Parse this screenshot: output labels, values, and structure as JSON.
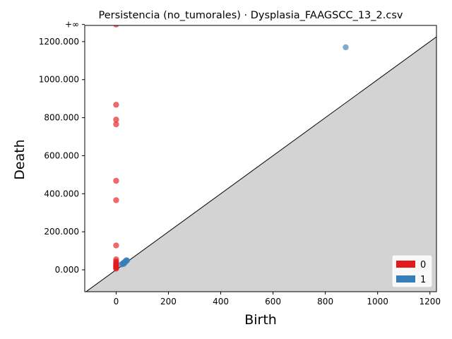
{
  "chart_data": {
    "type": "scatter",
    "title": "Persistencia (no_tumorales) · Dysplasia_FAAGSCC_13_2.csv",
    "xlabel": "Birth",
    "ylabel": "Death",
    "xlim": [
      -120,
      1225
    ],
    "ylim": [
      -115,
      1285
    ],
    "infinity_label": "+∞",
    "infinity_value": 1290,
    "x_ticks": [
      "0",
      "200",
      "400",
      "600",
      "800",
      "1000",
      "1200"
    ],
    "x_tick_values": [
      0,
      200,
      400,
      600,
      800,
      1000,
      1200
    ],
    "y_ticks": [
      "0.000",
      "200.000",
      "400.000",
      "600.000",
      "800.000",
      "1000.000",
      "1200.000"
    ],
    "y_tick_values": [
      0,
      200,
      400,
      600,
      800,
      1000,
      1200
    ],
    "legend_position": "lower-right",
    "grid": false,
    "series": [
      {
        "name": "0",
        "color": "#e41a1c",
        "points": [
          [
            0,
            1290
          ],
          [
            0,
            868
          ],
          [
            0,
            790
          ],
          [
            0,
            765
          ],
          [
            0,
            468
          ],
          [
            0,
            366
          ],
          [
            0,
            128
          ],
          [
            0,
            55
          ],
          [
            0,
            45
          ],
          [
            0,
            38
          ],
          [
            0,
            32
          ],
          [
            0,
            27
          ],
          [
            0,
            22
          ],
          [
            0,
            18
          ],
          [
            0,
            14
          ],
          [
            0,
            10
          ],
          [
            0,
            6
          ]
        ]
      },
      {
        "name": "1",
        "color": "#377eb8",
        "points": [
          [
            878,
            1170
          ],
          [
            20,
            28
          ],
          [
            24,
            32
          ],
          [
            27,
            35
          ],
          [
            30,
            38
          ],
          [
            33,
            42
          ],
          [
            36,
            45
          ],
          [
            38,
            48
          ],
          [
            40,
            50
          ],
          [
            42,
            49
          ],
          [
            35,
            40
          ],
          [
            28,
            30
          ],
          [
            31,
            34
          ]
        ]
      }
    ]
  }
}
